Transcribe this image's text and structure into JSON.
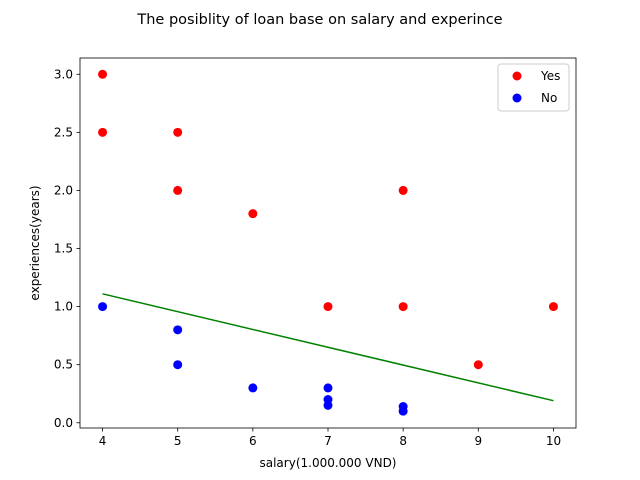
{
  "chart_data": {
    "type": "scatter",
    "title": "The posiblity of loan base on salary and experince",
    "xlabel": "salary(1.000.000 VND)",
    "ylabel": "experiences(years)",
    "xlim": [
      3.7,
      10.3
    ],
    "ylim": [
      -0.045,
      3.14
    ],
    "xticks": [
      4,
      5,
      6,
      7,
      8,
      9,
      10
    ],
    "yticks": [
      0.0,
      0.5,
      1.0,
      1.5,
      2.0,
      2.5,
      3.0
    ],
    "xtick_labels": [
      "4",
      "5",
      "6",
      "7",
      "8",
      "9",
      "10"
    ],
    "ytick_labels": [
      "0.0",
      "0.5",
      "1.0",
      "1.5",
      "2.0",
      "2.5",
      "3.0"
    ],
    "grid": false,
    "legend_position": "top-right",
    "series": [
      {
        "name": "Yes",
        "color": "#ff0000",
        "points": [
          [
            4,
            3.0
          ],
          [
            4,
            2.5
          ],
          [
            5,
            2.5
          ],
          [
            5,
            2.0
          ],
          [
            6,
            1.8
          ],
          [
            8,
            2.0
          ],
          [
            7,
            1.0
          ],
          [
            8,
            1.0
          ],
          [
            10,
            1.0
          ],
          [
            9,
            0.5
          ]
        ]
      },
      {
        "name": "No",
        "color": "#0000ff",
        "points": [
          [
            4,
            1.0
          ],
          [
            5,
            0.8
          ],
          [
            5,
            0.5
          ],
          [
            6,
            0.3
          ],
          [
            7,
            0.3
          ],
          [
            7,
            0.2
          ],
          [
            7,
            0.15
          ],
          [
            8,
            0.14
          ],
          [
            8,
            0.1
          ]
        ]
      }
    ],
    "trend_line": {
      "color": "#008000",
      "points": [
        [
          4,
          1.11
        ],
        [
          10,
          0.19
        ]
      ]
    }
  }
}
